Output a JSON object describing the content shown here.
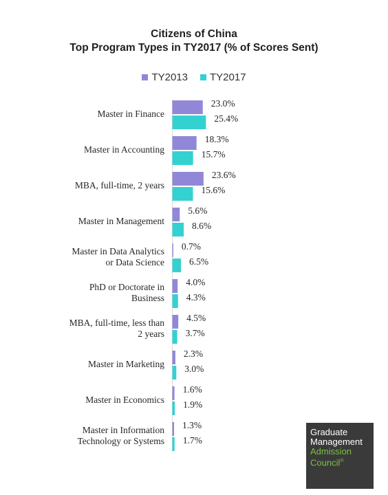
{
  "chart_data": {
    "type": "bar",
    "orientation": "horizontal",
    "title": "Citizens of China",
    "subtitle": "Top Program Types in TY2017 (% of Scores Sent)",
    "categories": [
      [
        "Master in Finance"
      ],
      [
        "Master in Accounting"
      ],
      [
        "MBA, full-time, 2 years"
      ],
      [
        "Master in Management"
      ],
      [
        "Master in Data Analytics",
        "or Data Science"
      ],
      [
        "PhD or Doctorate in",
        "Business"
      ],
      [
        "MBA, full-time, less than",
        "2 years"
      ],
      [
        "Master in Marketing"
      ],
      [
        "Master in Economics"
      ],
      [
        "Master in Information",
        "Technology or Systems"
      ]
    ],
    "series": [
      {
        "name": "TY2013",
        "color": "#9187d8",
        "values": [
          23.0,
          18.3,
          23.6,
          5.6,
          0.7,
          4.0,
          4.5,
          2.3,
          1.6,
          1.3
        ],
        "labels": [
          "23.0%",
          "18.3%",
          "23.6%",
          "5.6%",
          "0.7%",
          "4.0%",
          "4.5%",
          "2.3%",
          "1.6%",
          "1.3%"
        ]
      },
      {
        "name": "TY2017",
        "color": "#34d1d1",
        "values": [
          25.4,
          15.7,
          15.6,
          8.6,
          6.5,
          4.3,
          3.7,
          3.0,
          1.9,
          1.7
        ],
        "labels": [
          "25.4%",
          "15.7%",
          "15.6%",
          "8.6%",
          "6.5%",
          "4.3%",
          "3.7%",
          "3.0%",
          "1.9%",
          "1.7%"
        ]
      }
    ],
    "xlim": [
      0,
      26
    ],
    "legend_position": "top-center",
    "grid": false
  },
  "logo": {
    "line1": "Graduate",
    "line2": "Management",
    "line3": "Admission",
    "line4": "Council",
    "mark": "®"
  }
}
